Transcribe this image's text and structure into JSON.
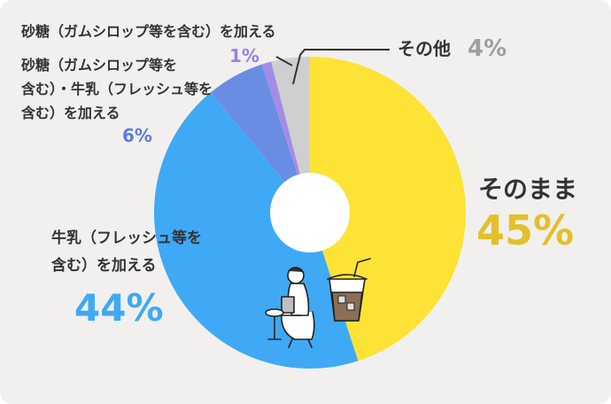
{
  "chart_data": {
    "type": "pie",
    "donut": true,
    "start": "top",
    "direction": "clockwise",
    "slices": [
      {
        "label": "そのまま",
        "value": 45,
        "value_text": "45%",
        "color": "#fde335",
        "text_color": "#e3c02b"
      },
      {
        "label": "牛乳（フレッシュ等を含む）を加える",
        "value": 44,
        "value_text": "44%",
        "color": "#3fa9f5",
        "text_color": "#3fa9f5"
      },
      {
        "label": "砂糖（ガムシロップ等を含む）・牛乳（フレッシュ等を含む）を加える",
        "value": 6,
        "value_text": "6%",
        "color": "#6a8de4",
        "text_color": "#5a7de0"
      },
      {
        "label": "砂糖（ガムシロップ等を含む）を加える",
        "value": 1,
        "value_text": "1%",
        "color": "#a48ce6",
        "text_color": "#9b7fe0"
      },
      {
        "label": "その他",
        "value": 4,
        "value_text": "4%",
        "color": "#cfcfcf",
        "text_color": "#9e9e9e"
      }
    ]
  },
  "labels": {
    "sonomama": "そのまま",
    "sonomama_pct": "45%",
    "milk_line1": "牛乳（フレッシュ等を",
    "milk_line2": "含む）を加える",
    "milk_pct": "44%",
    "sugarmilk_line1": "砂糖（ガムシロップ等を",
    "sugarmilk_line2": "含む）・牛乳（フレッシュ等を",
    "sugarmilk_line3": "含む）を加える",
    "sugarmilk_pct": "6%",
    "sugar_line": "砂糖（ガムシロップ等を含む）を加える",
    "sugar_pct": "1%",
    "other": "その他",
    "other_pct": "4%"
  },
  "illustration": {
    "name": "person-with-laptop-and-iced-coffee-illustration"
  }
}
